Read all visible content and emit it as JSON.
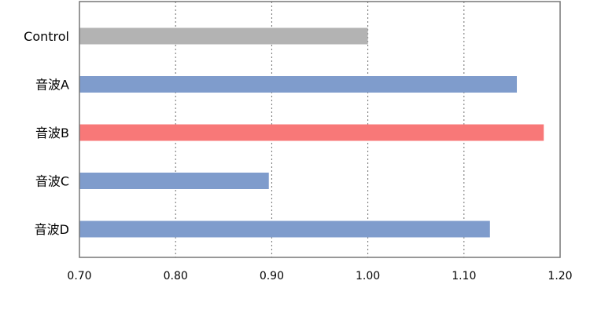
{
  "chart_data": {
    "type": "bar",
    "orientation": "horizontal",
    "categories": [
      "Control",
      "音波A",
      "音波B",
      "音波C",
      "音波D"
    ],
    "values": [
      1.0,
      1.155,
      1.183,
      0.897,
      1.127
    ],
    "colors": [
      "#b3b3b3",
      "#7f9ccc",
      "#f87878",
      "#7f9ccc",
      "#7f9ccc"
    ],
    "xlim": [
      0.7,
      1.2
    ],
    "xticks": [
      0.7,
      0.8,
      0.9,
      1.0,
      1.1,
      1.2
    ],
    "xtick_labels": [
      "0.70",
      "0.80",
      "0.90",
      "1.00",
      "1.10",
      "1.20"
    ],
    "grid": "vertical dotted",
    "title": "",
    "xlabel": "",
    "ylabel": ""
  }
}
